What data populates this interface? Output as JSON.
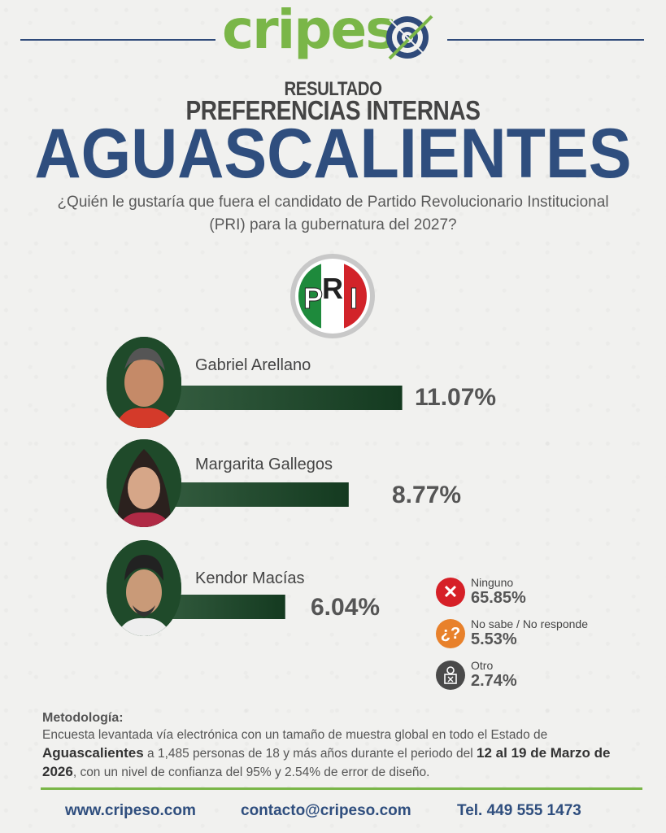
{
  "brand": {
    "name_part1": "cripes",
    "name_part2": "o",
    "green": "#7ab648",
    "blue": "#2f4a7a"
  },
  "header": {
    "kicker": "RESULTADO",
    "subtitle": "PREFERENCIAS INTERNAS",
    "state": "AGUASCALIENTES",
    "question": "¿Quién le gustaría que fuera el candidato de Partido Revolucionario Institucional (PRI) para la gubernatura del 2027?"
  },
  "party_logo": {
    "letters": [
      "P",
      "R",
      "I"
    ],
    "colors": [
      "#1e8a3c",
      "#ffffff",
      "#d2232a"
    ]
  },
  "chart_data": {
    "type": "bar",
    "orientation": "horizontal",
    "categories": [
      "Gabriel Arellano",
      "Margarita Gallegos",
      "Kendor Macías"
    ],
    "values": [
      11.07,
      8.77,
      6.04
    ],
    "value_labels": [
      "11.07%",
      "8.77%",
      "6.04%"
    ],
    "bar_color": "#1d4a2a",
    "other_responses": [
      {
        "label": "Ninguno",
        "value": 65.85,
        "value_label": "65.85%",
        "icon": "x-icon",
        "color": "#d62027"
      },
      {
        "label": "No sabe / No responde",
        "value": 5.53,
        "value_label": "5.53%",
        "icon": "question-icon",
        "color": "#e8812b"
      },
      {
        "label": "Otro",
        "value": 2.74,
        "value_label": "2.74%",
        "icon": "ballot-icon",
        "color": "#4a4a4a"
      }
    ]
  },
  "methodology": {
    "title": "Metodología:",
    "p1": "Encuesta levantada vía electrónica con un tamaño de muestra global en todo el Estado de ",
    "state_bold": "Aguascalientes",
    "p2": " a 1,485 personas de 18 y más años durante el periodo del ",
    "dates_bold": "12 al 19 de Marzo de 2026",
    "p3": ", con un nivel de confianza del 95% y 2.54% de error de diseño."
  },
  "footer": {
    "website": "www.cripeso.com",
    "email": "contacto@cripeso.com",
    "phone": "Tel. 449 555 1473"
  }
}
